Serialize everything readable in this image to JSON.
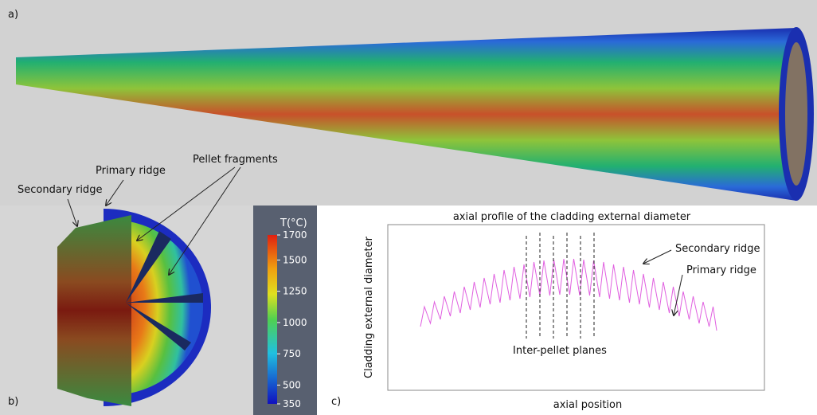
{
  "panels": {
    "a": {
      "label": "a)"
    },
    "b": {
      "label": "b)",
      "annotations": [
        "Secondary ridge",
        "Primary ridge",
        "Pellet fragments"
      ]
    },
    "colorbar": {
      "title": "T(°C)",
      "range": [
        350,
        1700
      ],
      "ticks": [
        1700,
        1500,
        1250,
        1000,
        750,
        500,
        350
      ]
    },
    "c": {
      "label": "c)",
      "title": "axial profile of the cladding external diameter",
      "y_label": "Cladding external diameter",
      "x_label": "axial position",
      "annotations": [
        "Secondary ridge",
        "Primary ridge",
        "Inter-pellet planes"
      ]
    }
  }
}
